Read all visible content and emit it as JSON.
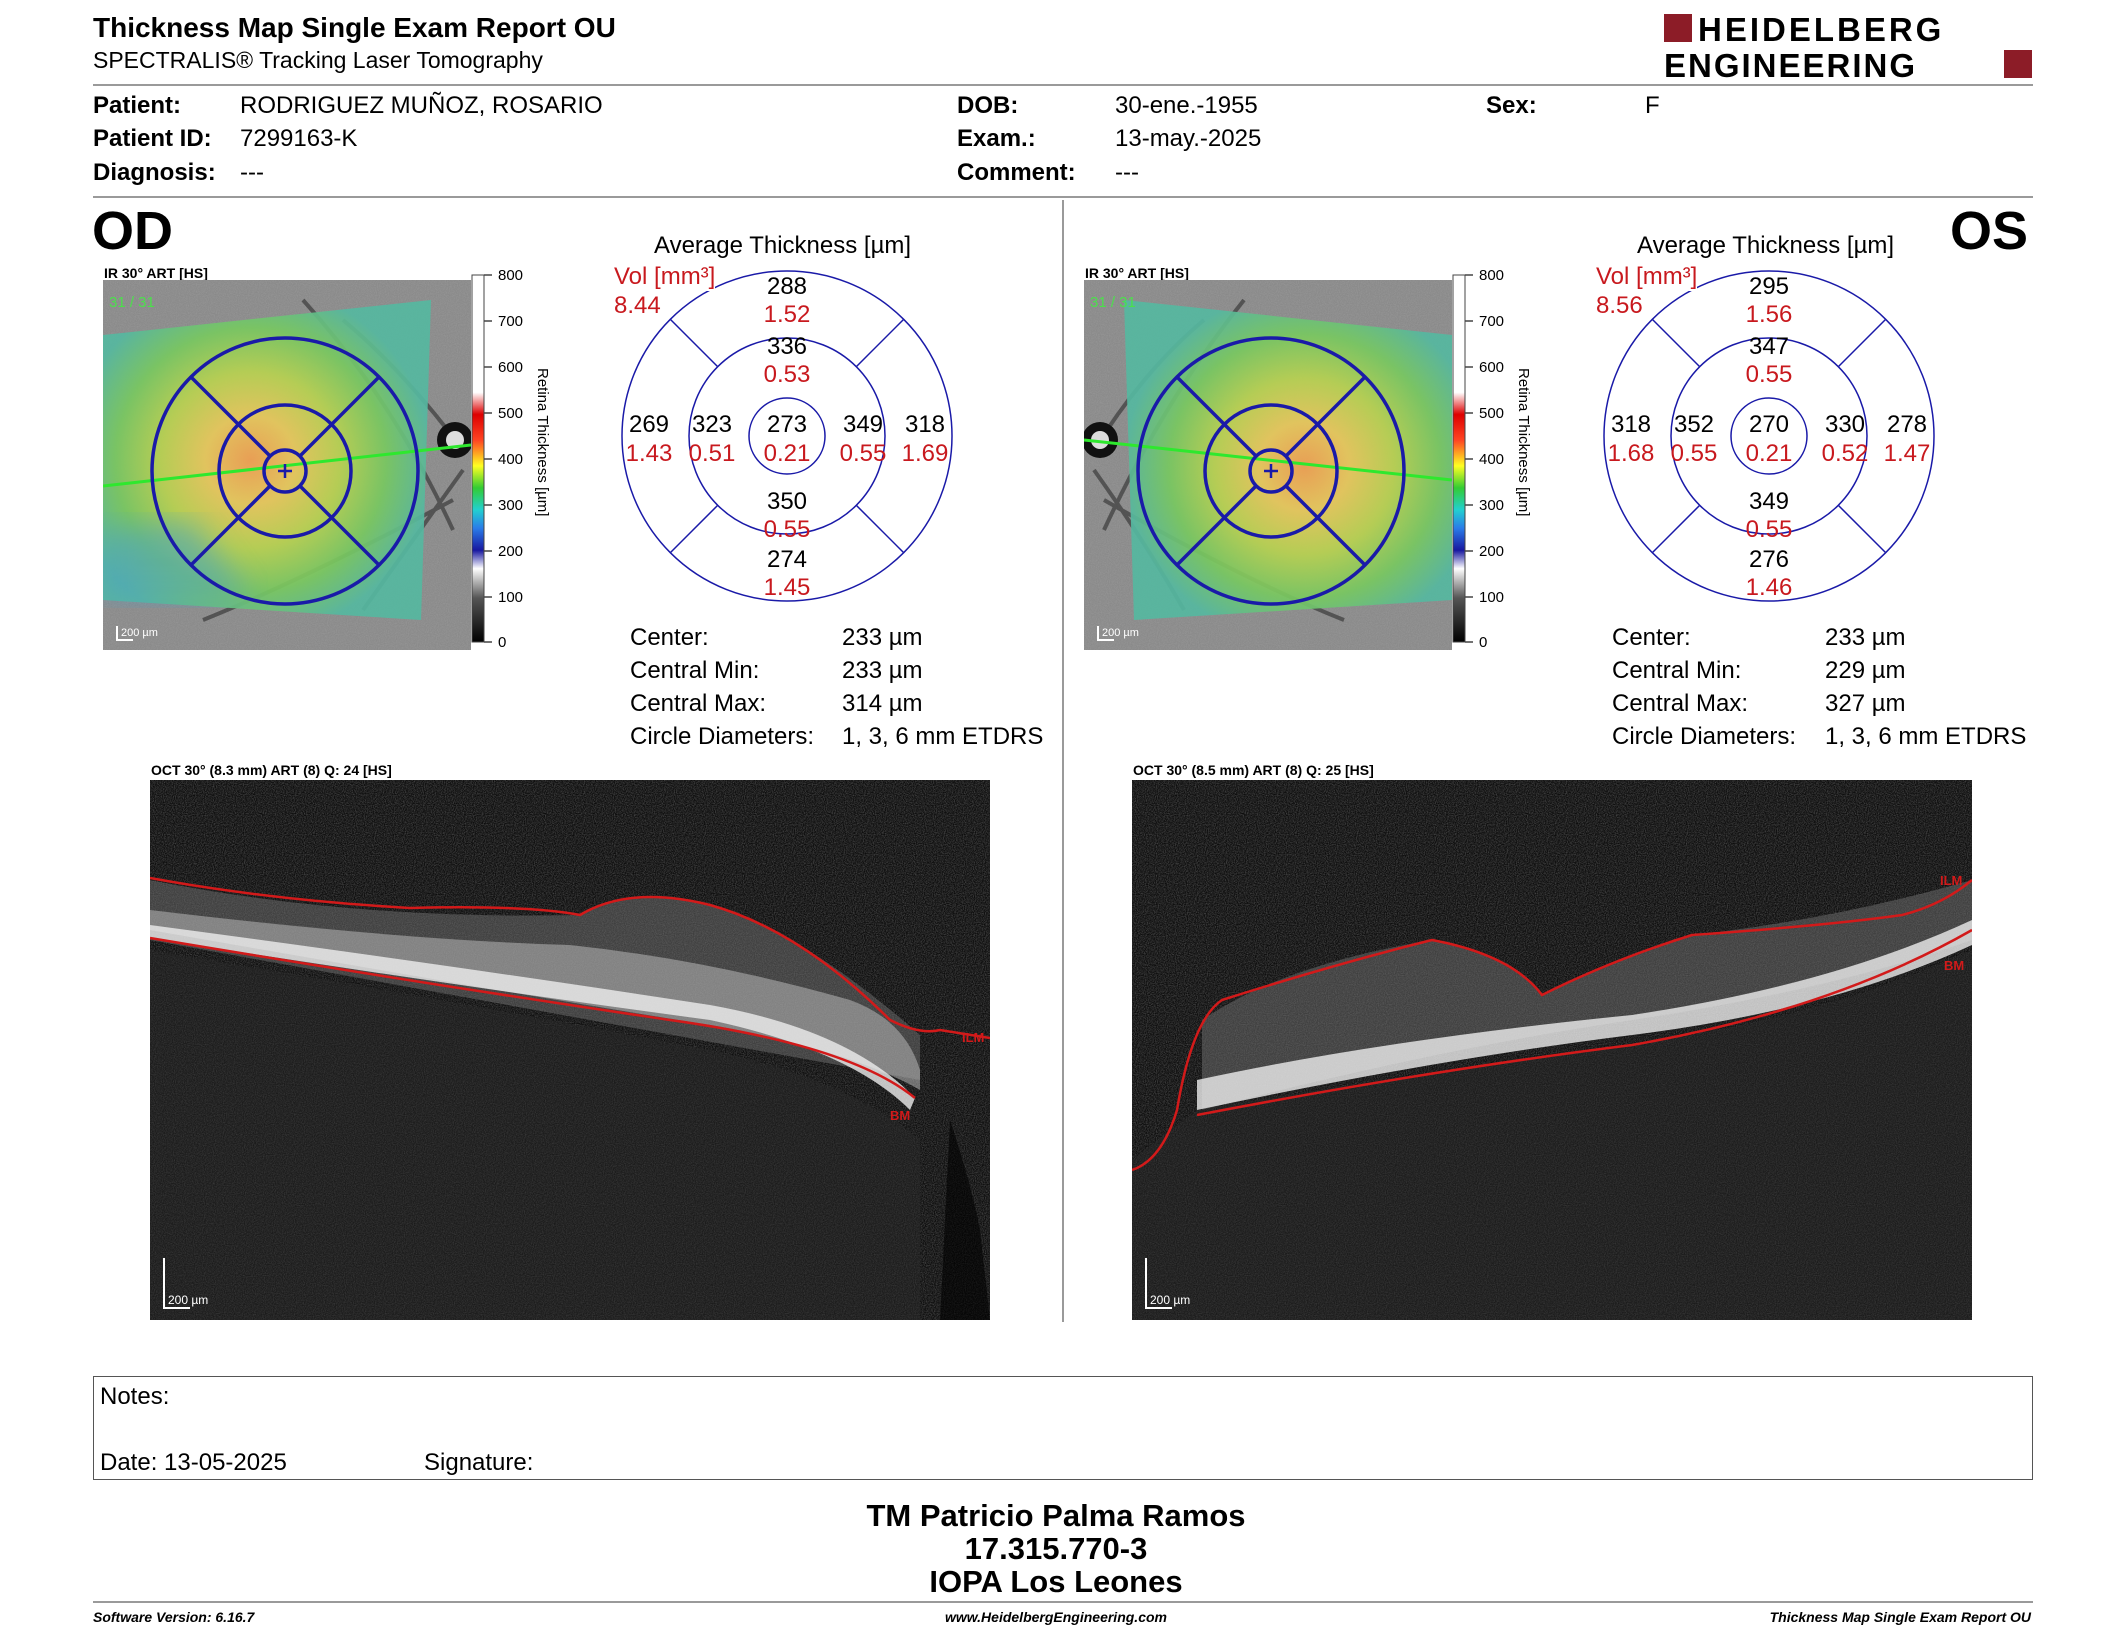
{
  "header": {
    "title": "Thickness Map Single Exam Report OU",
    "subtitle": "SPECTRALIS® Tracking Laser Tomography",
    "logo_line1": "HEIDELBERG",
    "logo_line2": "ENGINEERING",
    "logo_color": "#8c1c27"
  },
  "patient": {
    "patient_label": "Patient:",
    "patient_value": "RODRIGUEZ MUÑOZ, ROSARIO",
    "id_label": "Patient ID:",
    "id_value": "7299163-K",
    "diagnosis_label": "Diagnosis:",
    "diagnosis_value": "---",
    "dob_label": "DOB:",
    "dob_value": "30-ene.-1955",
    "exam_label": "Exam.:",
    "exam_value": "13-may.-2025",
    "comment_label": "Comment:",
    "comment_value": "---",
    "sex_label": "Sex:",
    "sex_value": "F"
  },
  "od": {
    "eye": "OD",
    "fundus_label": "IR 30° ART [HS]",
    "fundus_overlay": "31 / 31",
    "fundus_scale": "200 µm",
    "colorbar_ticks": [
      "800",
      "700",
      "600",
      "500",
      "400",
      "300",
      "200",
      "100",
      "0"
    ],
    "colorbar_label": "Retina Thickness [µm]",
    "avg_title": "Average Thickness [µm]",
    "vol_label": "Vol [mm³]",
    "vol_total": "8.44",
    "sectors": {
      "outer_top": {
        "t": "288",
        "v": "1.52"
      },
      "inner_top": {
        "t": "336",
        "v": "0.53"
      },
      "outer_left": {
        "t": "269",
        "v": "1.43"
      },
      "inner_left": {
        "t": "323",
        "v": "0.51"
      },
      "center": {
        "t": "273",
        "v": "0.21"
      },
      "inner_right": {
        "t": "349",
        "v": "0.55"
      },
      "outer_right": {
        "t": "318",
        "v": "1.69"
      },
      "inner_bottom": {
        "t": "350",
        "v": "0.55"
      },
      "outer_bottom": {
        "t": "274",
        "v": "1.45"
      }
    },
    "stats": {
      "center_label": "Center:",
      "center_value": "233 µm",
      "min_label": "Central Min:",
      "min_value": "233 µm",
      "max_label": "Central Max:",
      "max_value": "314 µm",
      "diam_label": "Circle Diameters:",
      "diam_value": "1, 3, 6 mm ETDRS"
    },
    "oct_label": "OCT 30° (8.3 mm) ART (8) Q: 24 [HS]",
    "oct_scale": "200 µm",
    "ilm": "ILM",
    "bm": "BM"
  },
  "os": {
    "eye": "OS",
    "fundus_label": "IR 30° ART [HS]",
    "fundus_overlay": "31 / 31",
    "fundus_scale": "200 µm",
    "colorbar_ticks": [
      "800",
      "700",
      "600",
      "500",
      "400",
      "300",
      "200",
      "100",
      "0"
    ],
    "colorbar_label": "Retina Thickness [µm]",
    "avg_title": "Average Thickness [µm]",
    "vol_label": "Vol [mm³]",
    "vol_total": "8.56",
    "sectors": {
      "outer_top": {
        "t": "295",
        "v": "1.56"
      },
      "inner_top": {
        "t": "347",
        "v": "0.55"
      },
      "outer_left": {
        "t": "318",
        "v": "1.68"
      },
      "inner_left": {
        "t": "352",
        "v": "0.55"
      },
      "center": {
        "t": "270",
        "v": "0.21"
      },
      "inner_right": {
        "t": "330",
        "v": "0.52"
      },
      "outer_right": {
        "t": "278",
        "v": "1.47"
      },
      "inner_bottom": {
        "t": "349",
        "v": "0.55"
      },
      "outer_bottom": {
        "t": "276",
        "v": "1.46"
      }
    },
    "stats": {
      "center_label": "Center:",
      "center_value": "233 µm",
      "min_label": "Central Min:",
      "min_value": "229 µm",
      "max_label": "Central Max:",
      "max_value": "327 µm",
      "diam_label": "Circle Diameters:",
      "diam_value": "1, 3, 6 mm ETDRS"
    },
    "oct_label": "OCT 30° (8.5 mm) ART (8) Q: 25 [HS]",
    "oct_scale": "200 µm",
    "ilm": "ILM",
    "bm": "BM"
  },
  "notes": {
    "notes_label": "Notes:",
    "date_label": "Date: 13-05-2025",
    "signature_label": "Signature:"
  },
  "signer": {
    "name": "TM Patricio Palma Ramos",
    "rut": "17.315.770-3",
    "institution": "IOPA Los Leones"
  },
  "footer": {
    "software": "Software Version: 6.16.7",
    "website": "www.HeidelbergEngineering.com",
    "report": "Thickness Map Single Exam Report OU"
  },
  "colors": {
    "etdrs_grid": "#1a1aa8",
    "volume_red": "#c8191e",
    "scan_line": "#2ee82e",
    "segmentation": "#d21a1a"
  }
}
